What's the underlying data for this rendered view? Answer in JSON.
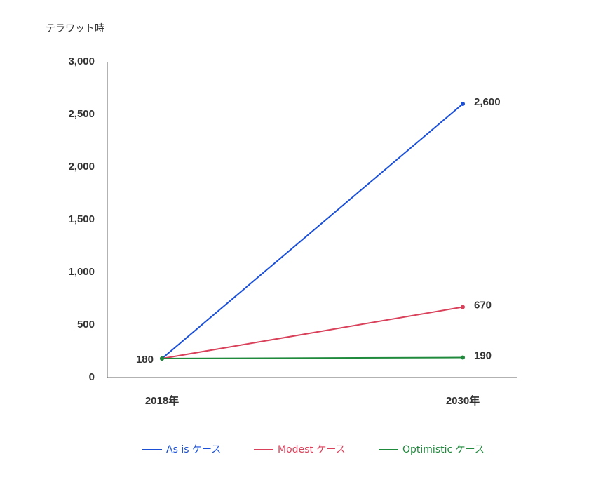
{
  "chart_data": {
    "type": "line",
    "y_label": "テラワット時",
    "categories": [
      "2018年",
      "2030年"
    ],
    "series": [
      {
        "name": "As is ケース",
        "color": "#1a4fd6",
        "values": [
          180,
          2600
        ],
        "value_labels": [
          "180",
          "2,600"
        ]
      },
      {
        "name": "Modest ケース",
        "color": "#d9415a",
        "values": [
          180,
          670
        ],
        "value_labels": [
          null,
          "670"
        ]
      },
      {
        "name": "Optimistic ケース",
        "color": "#1f8a3c",
        "values": [
          180,
          190
        ],
        "value_labels": [
          null,
          "190"
        ]
      }
    ],
    "ylim": [
      0,
      3000
    ],
    "yticks": [
      0,
      500,
      {
        "value": 1000,
        "label": "1,000"
      },
      {
        "value": 1500,
        "label": "1,500"
      },
      {
        "value": 2000,
        "label": "2,000"
      },
      {
        "value": 2500,
        "label": "2,500"
      },
      {
        "value": 3000,
        "label": "3,000"
      }
    ],
    "grid": false,
    "legend": "bottom"
  }
}
